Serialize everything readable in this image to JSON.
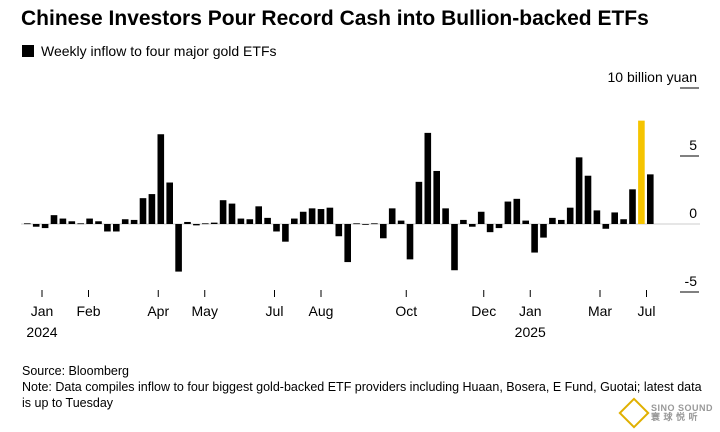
{
  "title": "Chinese Investors Pour Record Cash into Bullion-backed ETFs",
  "legend": {
    "label": "Weekly inflow to four major gold ETFs"
  },
  "chart_data": {
    "type": "bar",
    "title": "Chinese Investors Pour Record Cash into Bullion-backed ETFs",
    "series": [
      {
        "name": "Weekly inflow to four major gold ETFs",
        "values": [
          0.05,
          -0.2,
          -0.3,
          0.65,
          0.4,
          0.2,
          0.05,
          0.4,
          0.2,
          -0.55,
          -0.55,
          0.35,
          0.3,
          1.9,
          2.2,
          6.6,
          3.05,
          -3.5,
          0.15,
          -0.1,
          0.05,
          0.1,
          1.75,
          1.5,
          0.4,
          0.35,
          1.3,
          0.45,
          -0.55,
          -1.3,
          0.4,
          0.9,
          1.15,
          1.1,
          1.2,
          -0.9,
          -2.8,
          0.05,
          -0.05,
          0.05,
          -1.05,
          1.15,
          0.25,
          -2.6,
          3.1,
          6.7,
          3.9,
          1.15,
          -3.4,
          0.3,
          -0.2,
          0.9,
          -0.6,
          -0.3,
          1.65,
          1.85,
          0.25,
          -2.1,
          -1.0,
          0.45,
          0.3,
          1.2,
          4.9,
          3.55,
          1.0,
          -0.35,
          0.85,
          0.35,
          2.55,
          7.6,
          3.65
        ],
        "colors": {
          "default": "#000000",
          "highlight": "#F5C400"
        },
        "highlight_index": 69
      }
    ],
    "ylabel": "10 billion yuan",
    "ylim": [
      -5.5,
      10
    ],
    "yticks": [
      10,
      5,
      0,
      -5
    ],
    "ytick_labels": [
      "10 billion yuan",
      "5",
      "0",
      "-5"
    ],
    "x_ticks": [
      {
        "week": 1,
        "label": "Jan",
        "year": "2024"
      },
      {
        "week": 7,
        "label": "Feb"
      },
      {
        "week": 16,
        "label": "Apr"
      },
      {
        "week": 22,
        "label": "May"
      },
      {
        "week": 31,
        "label": "Jul"
      },
      {
        "week": 37,
        "label": "Aug"
      },
      {
        "week": 48,
        "label": "Oct"
      },
      {
        "week": 58,
        "label": "Dec"
      },
      {
        "week": 64,
        "label": "Jan",
        "year": "2025"
      },
      {
        "week": 73,
        "label": "Mar"
      },
      {
        "week": 79,
        "label": "Jul"
      }
    ],
    "grid": true
  },
  "source": "Source: Bloomberg",
  "note": "Note: Data compiles inflow to four biggest gold-backed ETF providers including Huaan, Bosera, E Fund, Guotai; latest data is up to Tuesday",
  "watermark": {
    "line1": "SINO SOUND",
    "line2": "寰 球 悦 听"
  }
}
